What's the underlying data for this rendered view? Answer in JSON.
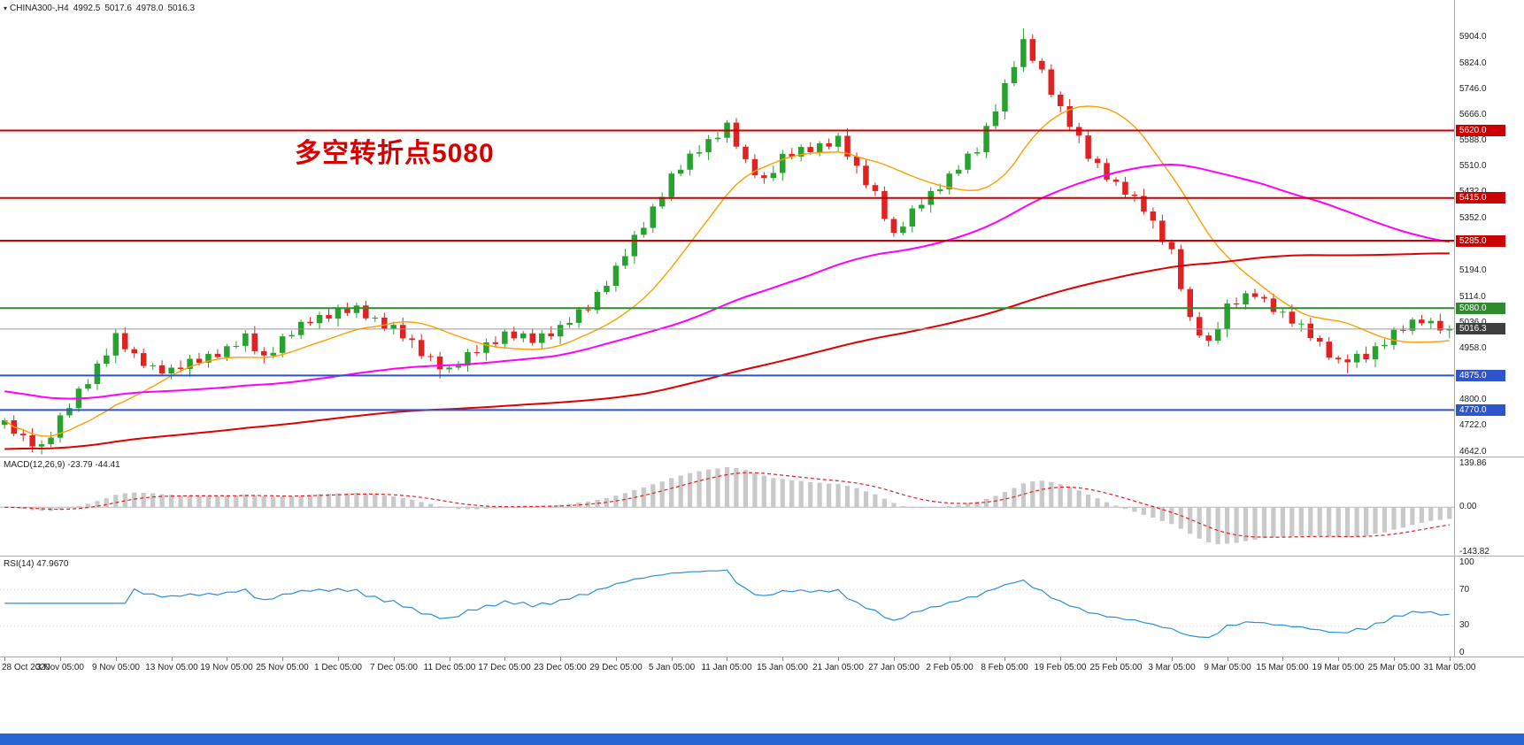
{
  "title_bar": {
    "symbol": "CHINA300-,H4",
    "ohlc": [
      "4992.5",
      "5017.6",
      "4978.0",
      "5016.3"
    ]
  },
  "annotation": {
    "text": "多空转折点5080",
    "color": "#d60000"
  },
  "colors": {
    "candle_up": "#27a22e",
    "candle_down": "#e02222",
    "ma_fast": "#ff9e00",
    "ma_mid": "#ff00ff",
    "ma_slow": "#e00000",
    "hline_red": "#cc0000",
    "hline_green": "#2e8b2e",
    "hline_blue": "#2e55cc",
    "last_price_line": "#999999",
    "last_price_badge": "#3f3f3f",
    "macd_hist": "#c9c9c9",
    "macd_signal": "#e02020",
    "rsi_line": "#2a8fd8",
    "bottom_bar": "#2867d2"
  },
  "main_chart": {
    "y_ticks": [
      "5904.0",
      "5824.0",
      "5746.0",
      "5666.0",
      "5588.0",
      "5510.0",
      "5432.0",
      "5352.0",
      "5274.0",
      "5194.0",
      "5114.0",
      "5036.0",
      "4958.0",
      "4880.0",
      "4800.0",
      "4722.0",
      "4642.0"
    ],
    "hlines": [
      {
        "price": 5620.0,
        "label": "5620.0",
        "color": "#cc0000"
      },
      {
        "price": 5415.0,
        "label": "5415.0",
        "color": "#cc0000"
      },
      {
        "price": 5285.0,
        "label": "5285.0",
        "color": "#cc0000"
      },
      {
        "price": 5080.0,
        "label": "5080.0",
        "color": "#2e8b2e"
      },
      {
        "price": 4875.0,
        "label": "4875.0",
        "color": "#2e55cc"
      },
      {
        "price": 4770.0,
        "label": "4770.0",
        "color": "#2e55cc"
      }
    ],
    "current_price": {
      "value": 5016.3,
      "label": "5016.3"
    }
  },
  "macd_panel": {
    "label": "MACD(12,26,9)",
    "values": "-23.79 -44.41",
    "y_ticks": [
      "139.86",
      "0.00",
      "-143.82"
    ],
    "axis_max": 139.86,
    "axis_min": -143.82
  },
  "rsi_panel": {
    "label": "RSI(14)",
    "value": "47.9670",
    "y_ticks": [
      "100",
      "70",
      "30",
      "0"
    ],
    "levels": [
      70,
      30
    ]
  },
  "x_axis": {
    "labels": [
      "28 Oct 2020",
      "3 Nov 05:00",
      "9 Nov 05:00",
      "13 Nov 05:00",
      "19 Nov 05:00",
      "25 Nov 05:00",
      "1 Dec 05:00",
      "7 Dec 05:00",
      "11 Dec 05:00",
      "17 Dec 05:00",
      "23 Dec 05:00",
      "29 Dec 05:00",
      "5 Jan 05:00",
      "11 Jan 05:00",
      "15 Jan 05:00",
      "21 Jan 05:00",
      "27 Jan 05:00",
      "2 Feb 05:00",
      "8 Feb 05:00",
      "19 Feb 05:00",
      "25 Feb 05:00",
      "3 Mar 05:00",
      "9 Mar 05:00",
      "15 Mar 05:00",
      "19 Mar 05:00",
      "25 Mar 05:00",
      "31 Mar 05:00"
    ],
    "candles_per_label": 6
  },
  "chart_data": {
    "type": "candlestick",
    "symbol": "CHINA300-",
    "timeframe": "H4",
    "x_range": [
      "28 Oct 2020",
      "31 Mar 05:00"
    ],
    "price_range": [
      4642.0,
      5904.0
    ],
    "last_ohlc": {
      "open": 4992.5,
      "high": 5017.6,
      "low": 4978.0,
      "close": 5016.3
    },
    "first_open": 4725,
    "closes": [
      4739,
      4698,
      4693,
      4659,
      4666,
      4686,
      4754,
      4776,
      4835,
      4849,
      4911,
      4936,
      5004,
      4955,
      4943,
      4904,
      4906,
      4881,
      4899,
      4895,
      4926,
      4914,
      4941,
      4931,
      4964,
      4965,
      5003,
      4949,
      4936,
      4944,
      4994,
      4998,
      5038,
      5034,
      5059,
      5048,
      5079,
      5065,
      5088,
      5049,
      5051,
      5018,
      5029,
      4988,
      4983,
      4934,
      4933,
      4894,
      4899,
      4905,
      4946,
      4944,
      4976,
      4971,
      5009,
      4988,
      5003,
      4974,
      5003,
      4994,
      5029,
      5035,
      5076,
      5074,
      5129,
      5148,
      5209,
      5238,
      5303,
      5324,
      5389,
      5418,
      5489,
      5501,
      5550,
      5554,
      5594,
      5598,
      5644,
      5571,
      5533,
      5484,
      5476,
      5491,
      5549,
      5541,
      5570,
      5554,
      5581,
      5571,
      5604,
      5541,
      5513,
      5454,
      5436,
      5351,
      5309,
      5328,
      5383,
      5394,
      5436,
      5441,
      5489,
      5501,
      5550,
      5554,
      5634,
      5678,
      5764,
      5813,
      5898,
      5832,
      5806,
      5729,
      5694,
      5631,
      5605,
      5534,
      5521,
      5471,
      5464,
      5425,
      5421,
      5374,
      5346,
      5281,
      5259,
      5138,
      5053,
      4997,
      4981,
      5016,
      5094,
      5091,
      5125,
      5114,
      5109,
      5068,
      5069,
      5033,
      5033,
      4989,
      4978,
      4929,
      4924,
      4915,
      4941,
      4924,
      4964,
      4968,
      5014,
      5011,
      5045,
      5034,
      5041,
      5012,
      5016.3
    ],
    "extremes": [
      {
        "index": 3,
        "low": 4642
      },
      {
        "index": 47,
        "low": 4866
      },
      {
        "index": 110,
        "high": 5930
      },
      {
        "index": 145,
        "low": 4882
      }
    ],
    "moving_averages": [
      {
        "name": "fast-ma",
        "color": "#ff9e00",
        "window": 14,
        "seed_value": 4720,
        "seed_len": 0
      },
      {
        "name": "mid-ma",
        "color": "#ff00ff",
        "window": 60,
        "seed_value": 4830,
        "seed_len": 30
      },
      {
        "name": "slow-ma",
        "color": "#e00000",
        "window": 130,
        "seed_value": 4650,
        "seed_len": 60
      }
    ],
    "indicators": [
      {
        "type": "MACD",
        "params": [
          12,
          26,
          9
        ],
        "current": [
          -23.79,
          -44.41
        ],
        "axis_range": [
          -143.82,
          139.86
        ]
      },
      {
        "type": "RSI",
        "params": [
          14
        ],
        "current": 47.967,
        "axis_range": [
          0,
          100
        ],
        "levels": [
          70,
          30
        ]
      }
    ],
    "horizontal_levels": [
      5620.0,
      5415.0,
      5285.0,
      5080.0,
      4875.0,
      4770.0
    ],
    "last_price": 5016.3
  }
}
